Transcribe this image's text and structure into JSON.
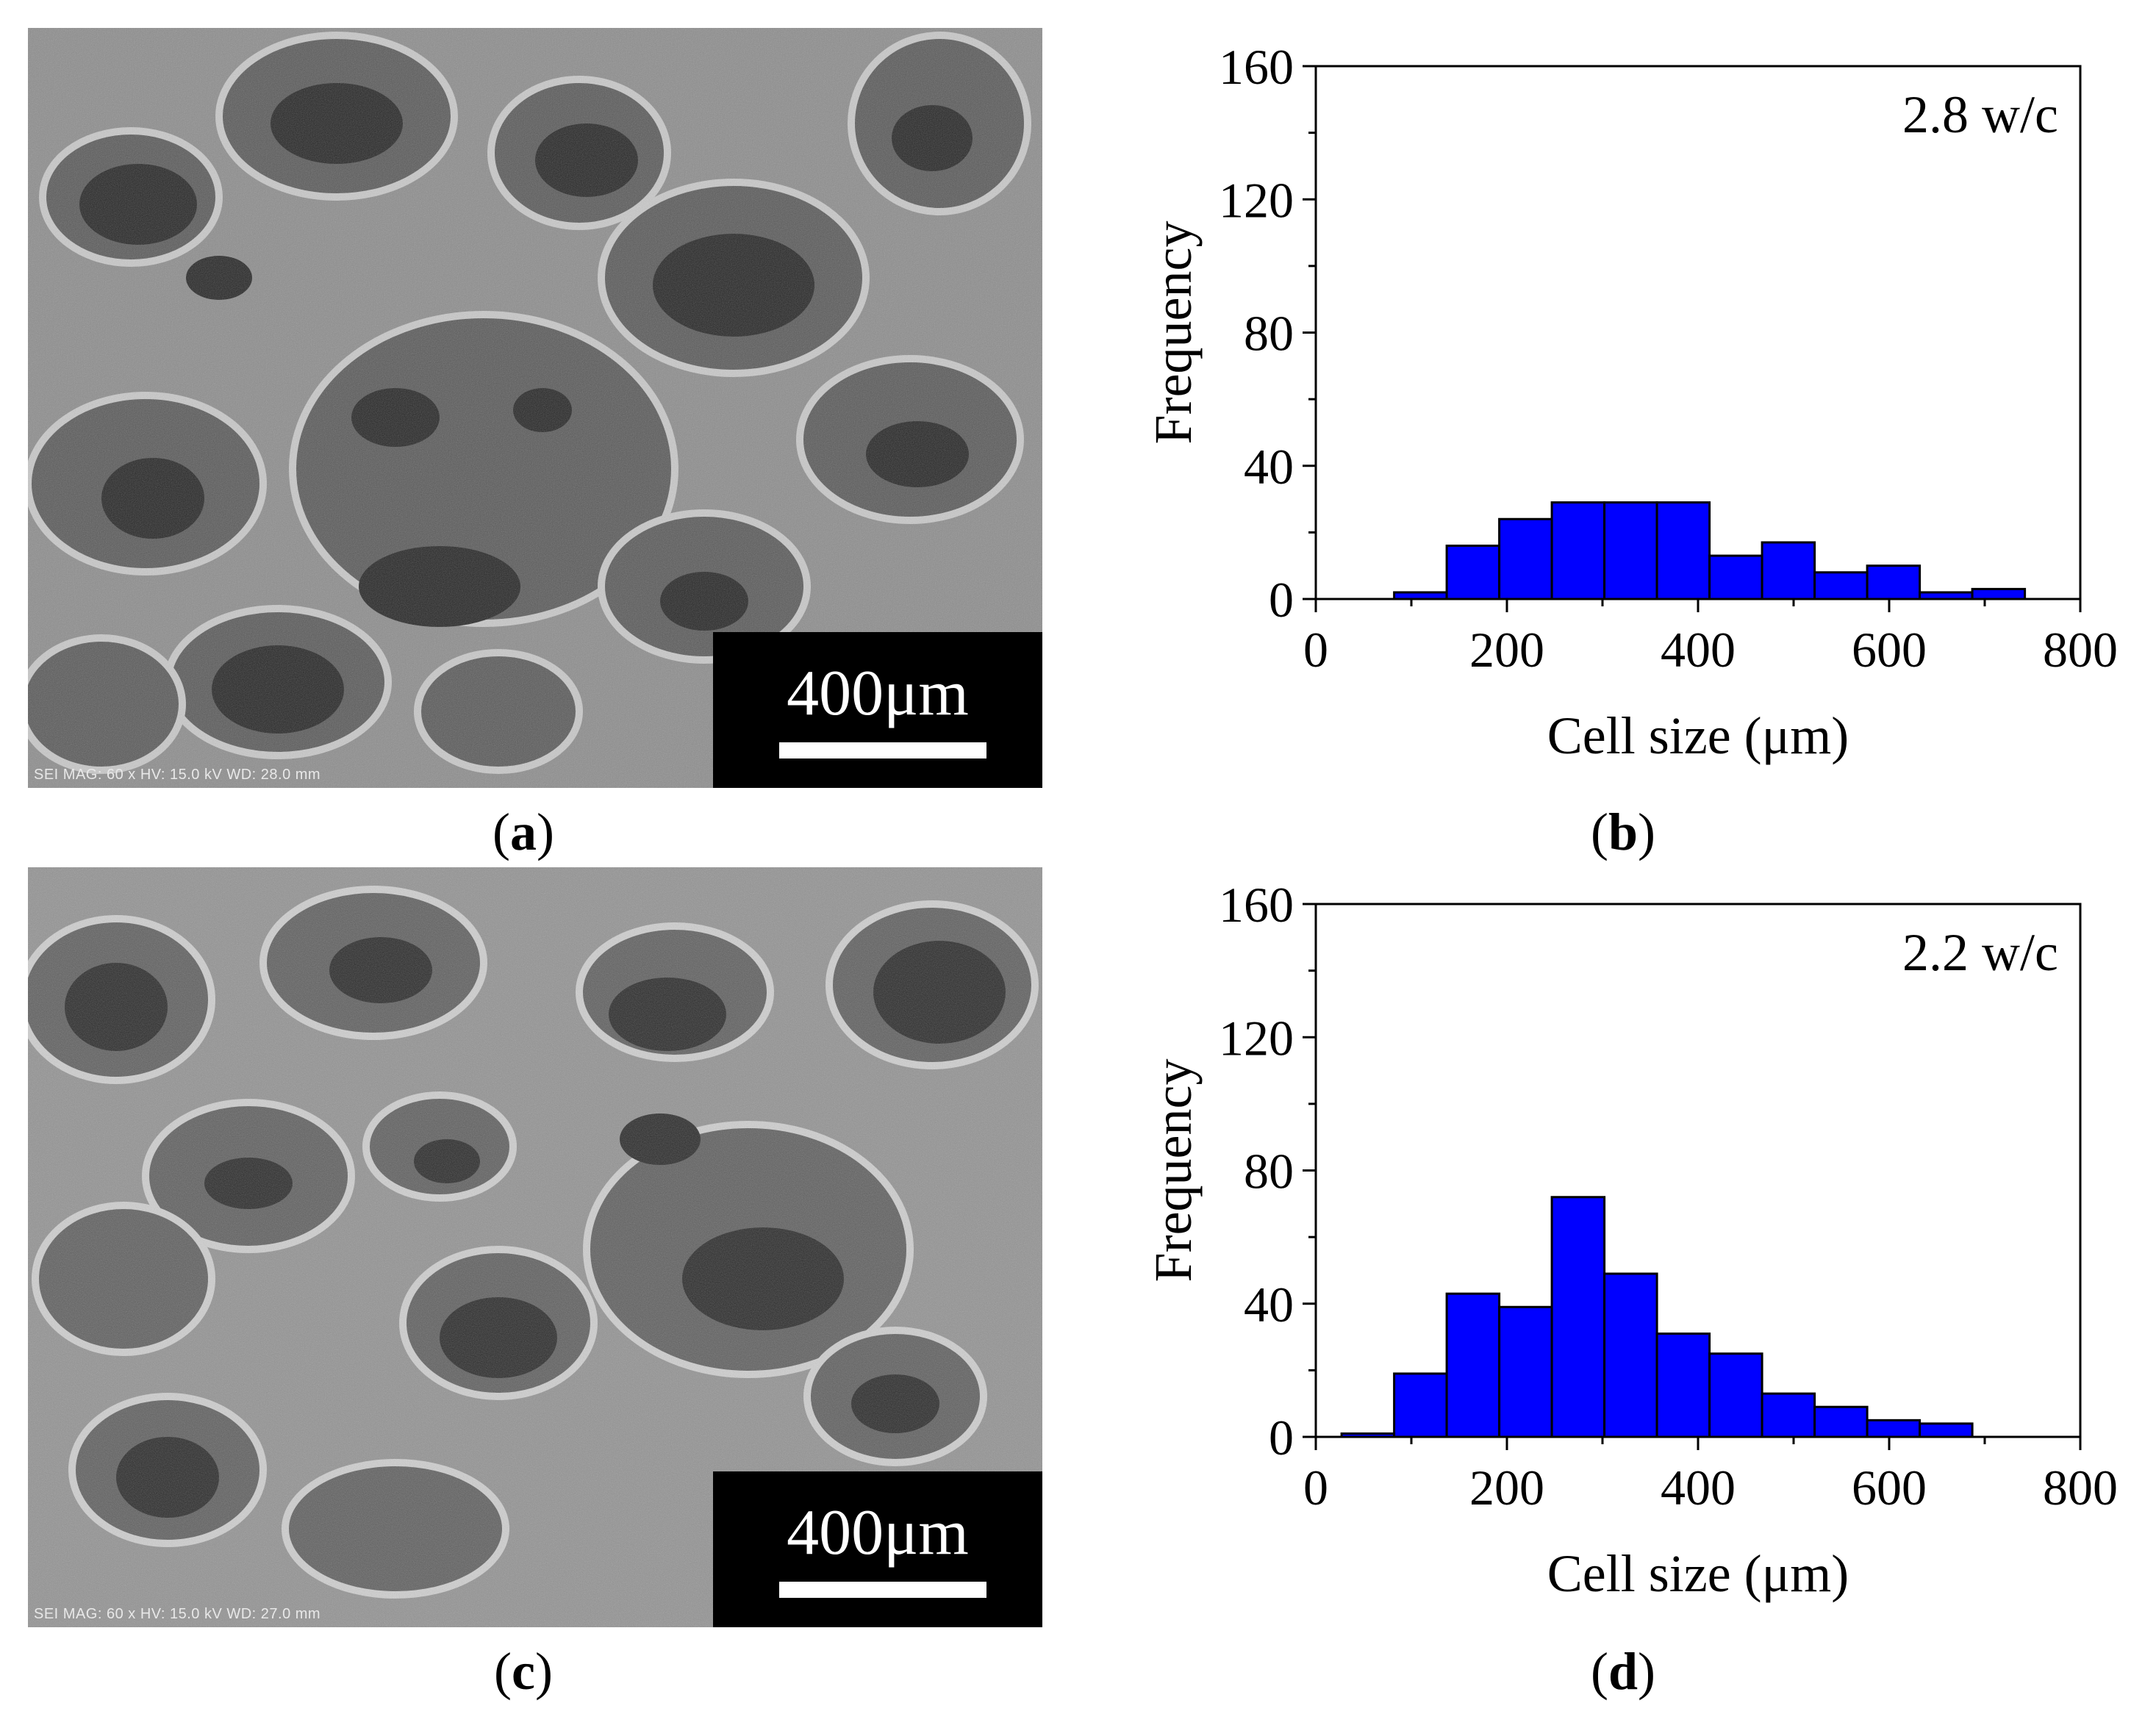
{
  "panels": {
    "a": {
      "label_open": "(",
      "letter": "a",
      "label_close": ")",
      "scale_label": "400μm",
      "sem_info": "SEI  MAG: 60 x  HV: 15.0 kV  WD: 28.0 mm"
    },
    "c": {
      "label_open": "(",
      "letter": "c",
      "label_close": ")",
      "scale_label": "400μm",
      "sem_info": "SEI  MAG: 60 x  HV: 15.0 kV  WD: 27.0 mm"
    },
    "b": {
      "label_open": "(",
      "letter": "b",
      "label_close": ")"
    },
    "d": {
      "label_open": "(",
      "letter": "d",
      "label_close": ")"
    }
  },
  "colors": {
    "bar_fill": "#0000ff",
    "bar_stroke": "#000000"
  },
  "chart_data": [
    {
      "type": "bar",
      "panel": "b",
      "annotation": "2.8 w/c",
      "xlabel": "Cell size (μm)",
      "ylabel": "Frequency",
      "xlim": [
        0,
        800
      ],
      "ylim": [
        0,
        160
      ],
      "xticks": [
        0,
        200,
        400,
        600,
        800
      ],
      "yticks": [
        0,
        40,
        80,
        120,
        160
      ],
      "bin_width": 55,
      "bin_starts": [
        82,
        137,
        192,
        247,
        302,
        357,
        412,
        467,
        522,
        577,
        632,
        687
      ],
      "values": [
        2,
        16,
        24,
        29,
        29,
        29,
        13,
        17,
        8,
        10,
        2,
        3
      ]
    },
    {
      "type": "bar",
      "panel": "d",
      "annotation": "2.2 w/c",
      "xlabel": "Cell size (μm)",
      "ylabel": "Frequency",
      "xlim": [
        0,
        800
      ],
      "ylim": [
        0,
        160
      ],
      "xticks": [
        0,
        200,
        400,
        600,
        800
      ],
      "yticks": [
        0,
        40,
        80,
        120,
        160
      ],
      "bin_width": 55,
      "bin_starts": [
        27,
        82,
        137,
        192,
        247,
        302,
        357,
        412,
        467,
        522,
        577,
        632
      ],
      "values": [
        1,
        19,
        43,
        39,
        72,
        49,
        31,
        25,
        13,
        9,
        5,
        4
      ]
    }
  ]
}
